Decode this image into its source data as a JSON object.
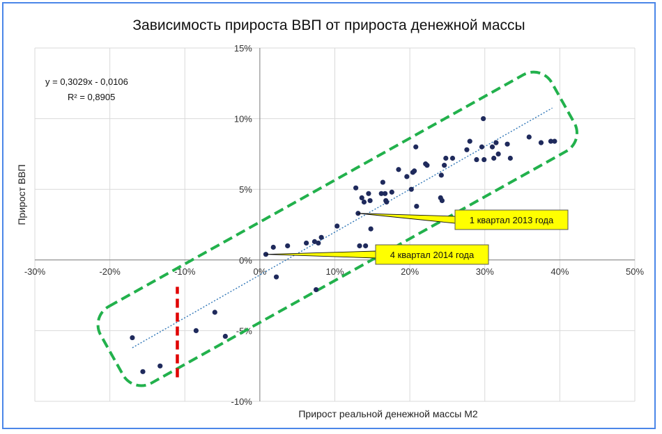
{
  "chart_data": {
    "type": "scatter",
    "title": "Зависимость прироста ВВП от прироста денежной массы",
    "xlabel": "Прирост реальной денежной массы М2",
    "ylabel": "Прирост ВВП",
    "xlim": [
      -0.3,
      0.5
    ],
    "ylim": [
      -0.1,
      0.15
    ],
    "x_ticks": [
      -0.3,
      -0.2,
      -0.1,
      0.0,
      0.1,
      0.2,
      0.3,
      0.4,
      0.5
    ],
    "y_ticks": [
      -0.1,
      -0.05,
      0.0,
      0.05,
      0.1,
      0.15
    ],
    "x_tick_labels": [
      "-30%",
      "-20%",
      "-10%",
      "0%",
      "10%",
      "20%",
      "30%",
      "40%",
      "50%"
    ],
    "y_tick_labels": [
      "-10%",
      "-5%",
      "0%",
      "5%",
      "10%",
      "15%"
    ],
    "grid": true,
    "points": [
      {
        "x": -0.156,
        "y": -0.079
      },
      {
        "x": -0.17,
        "y": -0.055
      },
      {
        "x": -0.133,
        "y": -0.075
      },
      {
        "x": -0.085,
        "y": -0.05
      },
      {
        "x": -0.06,
        "y": -0.037
      },
      {
        "x": -0.046,
        "y": -0.054
      },
      {
        "x": 0.008,
        "y": 0.004
      },
      {
        "x": 0.022,
        "y": -0.012
      },
      {
        "x": 0.018,
        "y": 0.009
      },
      {
        "x": 0.037,
        "y": 0.01
      },
      {
        "x": 0.062,
        "y": 0.012
      },
      {
        "x": 0.073,
        "y": 0.013
      },
      {
        "x": 0.075,
        "y": -0.021
      },
      {
        "x": 0.078,
        "y": 0.012
      },
      {
        "x": 0.082,
        "y": 0.016
      },
      {
        "x": 0.103,
        "y": 0.024
      },
      {
        "x": 0.128,
        "y": 0.051
      },
      {
        "x": 0.131,
        "y": 0.033
      },
      {
        "x": 0.133,
        "y": 0.01
      },
      {
        "x": 0.136,
        "y": 0.044
      },
      {
        "x": 0.139,
        "y": 0.041
      },
      {
        "x": 0.141,
        "y": 0.01
      },
      {
        "x": 0.145,
        "y": 0.047
      },
      {
        "x": 0.147,
        "y": 0.042
      },
      {
        "x": 0.148,
        "y": 0.022
      },
      {
        "x": 0.162,
        "y": 0.047
      },
      {
        "x": 0.164,
        "y": 0.055
      },
      {
        "x": 0.167,
        "y": 0.047
      },
      {
        "x": 0.168,
        "y": 0.042
      },
      {
        "x": 0.169,
        "y": 0.041
      },
      {
        "x": 0.176,
        "y": 0.048
      },
      {
        "x": 0.185,
        "y": 0.064
      },
      {
        "x": 0.196,
        "y": 0.059
      },
      {
        "x": 0.202,
        "y": 0.05
      },
      {
        "x": 0.204,
        "y": 0.062
      },
      {
        "x": 0.206,
        "y": 0.063
      },
      {
        "x": 0.208,
        "y": 0.08
      },
      {
        "x": 0.209,
        "y": 0.038
      },
      {
        "x": 0.221,
        "y": 0.068
      },
      {
        "x": 0.223,
        "y": 0.067
      },
      {
        "x": 0.241,
        "y": 0.044
      },
      {
        "x": 0.242,
        "y": 0.06
      },
      {
        "x": 0.243,
        "y": 0.042
      },
      {
        "x": 0.246,
        "y": 0.067
      },
      {
        "x": 0.248,
        "y": 0.072
      },
      {
        "x": 0.257,
        "y": 0.072
      },
      {
        "x": 0.276,
        "y": 0.078
      },
      {
        "x": 0.28,
        "y": 0.084
      },
      {
        "x": 0.289,
        "y": 0.071
      },
      {
        "x": 0.296,
        "y": 0.08
      },
      {
        "x": 0.298,
        "y": 0.1
      },
      {
        "x": 0.299,
        "y": 0.071
      },
      {
        "x": 0.31,
        "y": 0.08
      },
      {
        "x": 0.312,
        "y": 0.072
      },
      {
        "x": 0.315,
        "y": 0.083
      },
      {
        "x": 0.318,
        "y": 0.075
      },
      {
        "x": 0.33,
        "y": 0.082
      },
      {
        "x": 0.334,
        "y": 0.072
      },
      {
        "x": 0.359,
        "y": 0.087
      },
      {
        "x": 0.375,
        "y": 0.083
      },
      {
        "x": 0.388,
        "y": 0.084
      },
      {
        "x": 0.393,
        "y": 0.084
      }
    ],
    "trendline": {
      "equation": "y = 0,3029x - 0,0106",
      "r_squared": "R² = 0,8905",
      "slope": 0.3029,
      "intercept": -0.0106,
      "x_range": [
        -0.17,
        0.39
      ],
      "color": "#2e75b6"
    },
    "annotations": [
      {
        "text": "1 квартал 2013 года",
        "x": 0.131,
        "y": 0.033
      },
      {
        "text": "4 квартал 2014 года",
        "x": 0.008,
        "y": 0.004
      }
    ],
    "highlight_band_color": "#22b14c",
    "threshold_line": {
      "x": -0.11,
      "y_from": -0.083,
      "y_to": -0.019,
      "color": "#e00000"
    },
    "point_color": "#1f2a5c",
    "callout_fill": "#ffff00"
  }
}
